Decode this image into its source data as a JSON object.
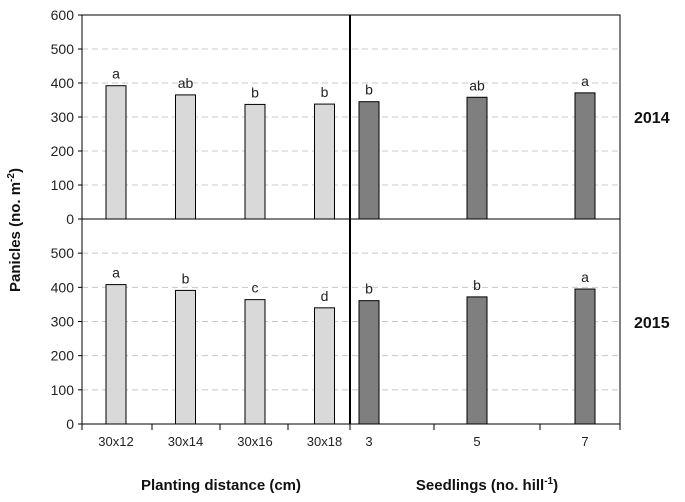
{
  "chart_data": {
    "type": "bar",
    "y_axis": {
      "label_main": "Panicles  (no. m",
      "label_sup": "-2",
      "label_end": ")",
      "range": [
        0,
        600
      ],
      "ticks": [
        "0",
        "100",
        "200",
        "300",
        "400",
        "500",
        "600"
      ],
      "panel_ticks_lower": [
        "0",
        "100",
        "200",
        "300",
        "400",
        "500"
      ],
      "gridlines": true
    },
    "groups": [
      {
        "xlabel_main": "Planting distance (cm)",
        "xlabel_sup": "",
        "xlabel_end": "",
        "categories": [
          "30x12",
          "30x14",
          "30x16",
          "30x18"
        ],
        "color": "#d9d9d9"
      },
      {
        "xlabel_main": "Seedlings (no. hill",
        "xlabel_sup": "-1",
        "xlabel_end": ")",
        "categories": [
          "3",
          "5",
          "7"
        ],
        "color": "#7f7f7f"
      }
    ],
    "rows": [
      {
        "year": "2014",
        "series": [
          {
            "values": [
              392,
              365,
              337,
              338
            ],
            "letters": [
              "a",
              "ab",
              "b",
              "b"
            ]
          },
          {
            "values": [
              345,
              358,
              371
            ],
            "letters": [
              "b",
              "ab",
              "a"
            ]
          }
        ]
      },
      {
        "year": "2015",
        "series": [
          {
            "values": [
              408,
              391,
              364,
              340
            ],
            "letters": [
              "a",
              "b",
              "c",
              "d"
            ]
          },
          {
            "values": [
              361,
              372,
              395
            ],
            "letters": [
              "b",
              "b",
              "a"
            ]
          }
        ]
      }
    ]
  }
}
